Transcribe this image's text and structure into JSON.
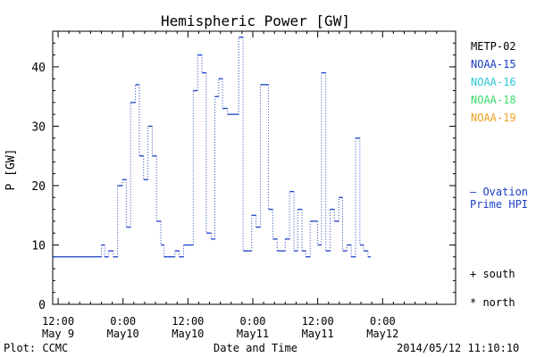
{
  "chart_data": {
    "type": "line",
    "title": "Hemispheric Power [GW]",
    "xlabel": "Date and Time",
    "ylabel": "P [GW]",
    "xlim": [
      -1.0,
      73.5
    ],
    "ylim": [
      0,
      46
    ],
    "grid": false,
    "y_ticks": [
      0,
      10,
      20,
      30,
      40
    ],
    "x_ticks": [
      {
        "x": 0,
        "line1": "12:00",
        "line2": "May 9"
      },
      {
        "x": 12,
        "line1": "0:00",
        "line2": "May10"
      },
      {
        "x": 24,
        "line1": "12:00",
        "line2": "May10"
      },
      {
        "x": 36,
        "line1": "0:00",
        "line2": "May11"
      },
      {
        "x": 48,
        "line1": "12:00",
        "line2": "May11"
      },
      {
        "x": 60,
        "line1": "0:00",
        "line2": "May12"
      }
    ],
    "legend": {
      "placement": "right",
      "entries": [
        {
          "label": "METP-02",
          "color": "#000000"
        },
        {
          "label": "NOAA-15",
          "color": "#1a3fc4"
        },
        {
          "label": "NOAA-16",
          "color": "#2ec7d6"
        },
        {
          "label": "NOAA-18",
          "color": "#3ddc6a"
        },
        {
          "label": "NOAA-19",
          "color": "#f0a020"
        }
      ]
    },
    "ovation_label_1": "— Ovation",
    "ovation_label_2": "Prime HPI",
    "marker_south": "+ south",
    "marker_north": "* north",
    "series": [
      {
        "color": "#1a3fc4",
        "points": [
          [
            -1.0,
            8
          ],
          [
            8.0,
            10
          ],
          [
            8.6,
            8
          ],
          [
            9.3,
            9
          ],
          [
            10.2,
            8
          ],
          [
            11.0,
            20
          ],
          [
            11.9,
            21
          ],
          [
            12.6,
            13
          ],
          [
            13.4,
            34
          ],
          [
            14.3,
            37
          ],
          [
            15.0,
            25
          ],
          [
            15.8,
            21
          ],
          [
            16.6,
            30
          ],
          [
            17.4,
            25
          ],
          [
            18.2,
            14
          ],
          [
            19.0,
            10
          ],
          [
            19.6,
            8
          ],
          [
            21.6,
            9
          ],
          [
            22.4,
            8
          ],
          [
            23.2,
            10
          ],
          [
            25.0,
            36
          ],
          [
            25.8,
            42
          ],
          [
            26.6,
            39
          ],
          [
            27.4,
            12
          ],
          [
            28.3,
            11
          ],
          [
            29.0,
            35
          ],
          [
            29.7,
            38
          ],
          [
            30.4,
            33
          ],
          [
            31.3,
            32
          ],
          [
            33.4,
            45
          ],
          [
            34.2,
            9
          ],
          [
            35.8,
            15
          ],
          [
            36.6,
            13
          ],
          [
            37.4,
            37
          ],
          [
            38.9,
            16
          ],
          [
            39.7,
            11
          ],
          [
            40.5,
            9
          ],
          [
            42.0,
            11
          ],
          [
            42.8,
            19
          ],
          [
            43.6,
            9
          ],
          [
            44.3,
            16
          ],
          [
            45.1,
            9
          ],
          [
            45.8,
            8
          ],
          [
            46.6,
            14
          ],
          [
            48.0,
            10
          ],
          [
            48.7,
            39
          ],
          [
            49.5,
            9
          ],
          [
            50.3,
            16
          ],
          [
            51.1,
            14
          ],
          [
            51.9,
            18
          ],
          [
            52.6,
            9
          ],
          [
            53.4,
            10
          ],
          [
            54.2,
            8
          ],
          [
            55.0,
            28
          ],
          [
            55.8,
            10
          ],
          [
            56.5,
            9
          ],
          [
            57.3,
            8
          ],
          [
            57.8,
            8
          ]
        ]
      }
    ]
  },
  "footer": {
    "plot_label": "Plot: CCMC",
    "timestamp": "2014/05/12 11:10:10"
  }
}
